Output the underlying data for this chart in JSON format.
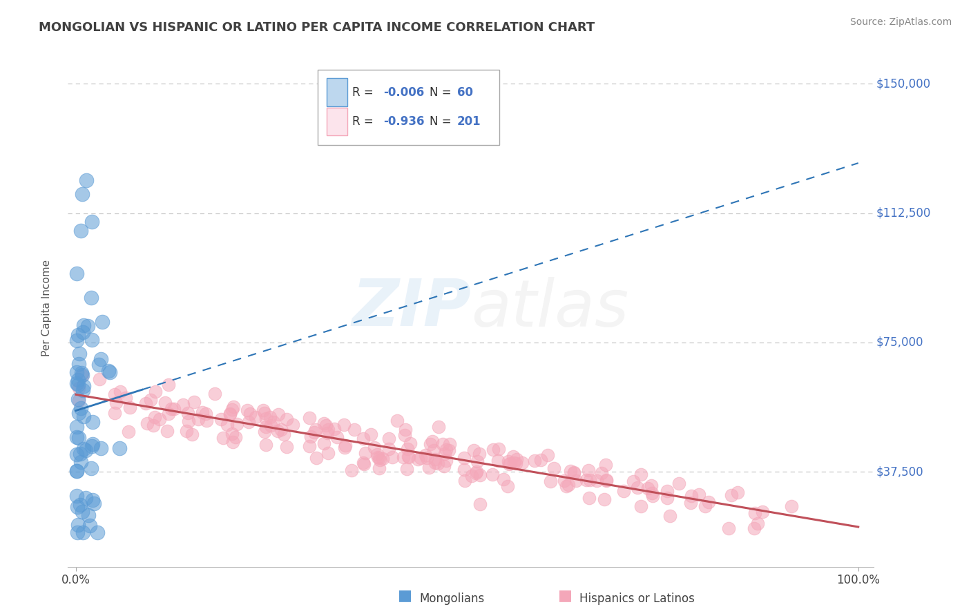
{
  "title": "MONGOLIAN VS HISPANIC OR LATINO PER CAPITA INCOME CORRELATION CHART",
  "source_text": "Source: ZipAtlas.com",
  "ylabel": "Per Capita Income",
  "xlim": [
    -0.01,
    1.02
  ],
  "ylim": [
    10000,
    160000
  ],
  "yticks": [
    37500,
    75000,
    112500,
    150000
  ],
  "ytick_labels": [
    "$37,500",
    "$75,000",
    "$112,500",
    "$150,000"
  ],
  "blue_color": "#5b9bd5",
  "blue_fill": "#bdd7ee",
  "pink_color": "#f4a7b9",
  "pink_fill": "#fce4ec",
  "blue_line_color": "#2e75b6",
  "pink_line_color": "#c0505a",
  "grid_color": "#c8c8c8",
  "title_color": "#404040",
  "axis_label_color": "#555555",
  "ytick_color": "#4472c4",
  "source_color": "#888888",
  "background_color": "#ffffff",
  "dot_size_blue": 220,
  "dot_size_pink": 180,
  "dot_alpha_blue": 0.55,
  "dot_alpha_pink": 0.55
}
